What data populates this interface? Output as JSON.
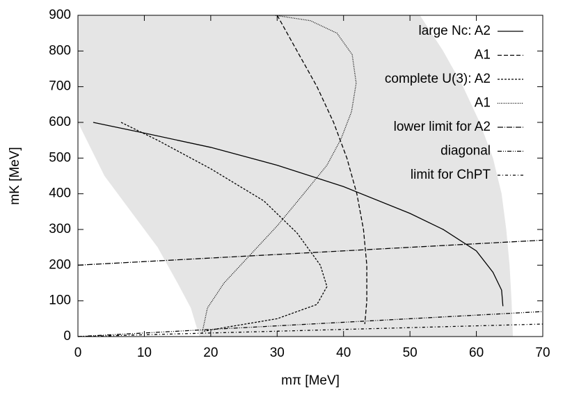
{
  "chart_data": {
    "type": "line",
    "xlabel": "mπ [MeV]",
    "ylabel": "mK [MeV]",
    "xlim": [
      0,
      70
    ],
    "ylim": [
      0,
      900
    ],
    "xticks": [
      0,
      10,
      20,
      30,
      40,
      50,
      60,
      70
    ],
    "yticks": [
      0,
      100,
      200,
      300,
      400,
      500,
      600,
      700,
      800,
      900
    ],
    "legend": "top-right",
    "region": {
      "color": "#e5e5e5",
      "x": [
        0,
        51.5,
        55,
        58,
        60.5,
        62.5,
        63.8,
        64.5,
        65,
        65.3,
        65.5,
        18.3,
        17,
        15,
        12,
        8,
        4,
        0
      ],
      "y": [
        900,
        900,
        800,
        700,
        600,
        500,
        400,
        300,
        200,
        100,
        0,
        0,
        80,
        150,
        250,
        350,
        450,
        600
      ]
    },
    "series": [
      {
        "name": "large Nc: A2",
        "color": "#000000",
        "dash": "none",
        "x": [
          2.3,
          10,
          20,
          30,
          40,
          50,
          55,
          60,
          62.5,
          63.8,
          64
        ],
        "values": [
          600,
          570,
          530,
          480,
          420,
          345,
          300,
          240,
          180,
          130,
          85
        ]
      },
      {
        "name": "A1",
        "color": "#000000",
        "dash": "6,3",
        "x": [
          30,
          33,
          36,
          38.5,
          40.5,
          42,
          43,
          43.5,
          43.5,
          43.2
        ],
        "values": [
          900,
          800,
          700,
          600,
          500,
          400,
          300,
          200,
          100,
          35
        ]
      },
      {
        "name": "complete U(3): A2",
        "color": "#000000",
        "dash": "3,2",
        "x": [
          6.5,
          12,
          20,
          28,
          33,
          36.5,
          37.5,
          36,
          30,
          22,
          19
        ],
        "values": [
          600,
          550,
          470,
          380,
          290,
          200,
          140,
          90,
          50,
          25,
          15
        ]
      },
      {
        "name": "A1",
        "color": "#000000",
        "dash": "1,1.5",
        "x": [
          18.7,
          19.5,
          22,
          26,
          30,
          34,
          37.5,
          39.6,
          41.2,
          41.9,
          41.3,
          39,
          35,
          29.7
        ],
        "values": [
          10,
          80,
          150,
          230,
          310,
          400,
          480,
          553,
          630,
          710,
          790,
          850,
          885,
          900
        ]
      },
      {
        "name": "lower limit for A2",
        "color": "#000000",
        "dash": "8,2,1,2",
        "x": [
          0,
          70
        ],
        "values": [
          200,
          270
        ]
      },
      {
        "name": "diagonal",
        "color": "#000000",
        "dash": "6,2,1,2,1,2",
        "x": [
          0,
          70
        ],
        "values": [
          0,
          70
        ]
      },
      {
        "name": "limit for ChPT",
        "color": "#000000",
        "dash": "4,3,1,3",
        "x": [
          0,
          70
        ],
        "values": [
          0,
          35
        ]
      }
    ]
  }
}
